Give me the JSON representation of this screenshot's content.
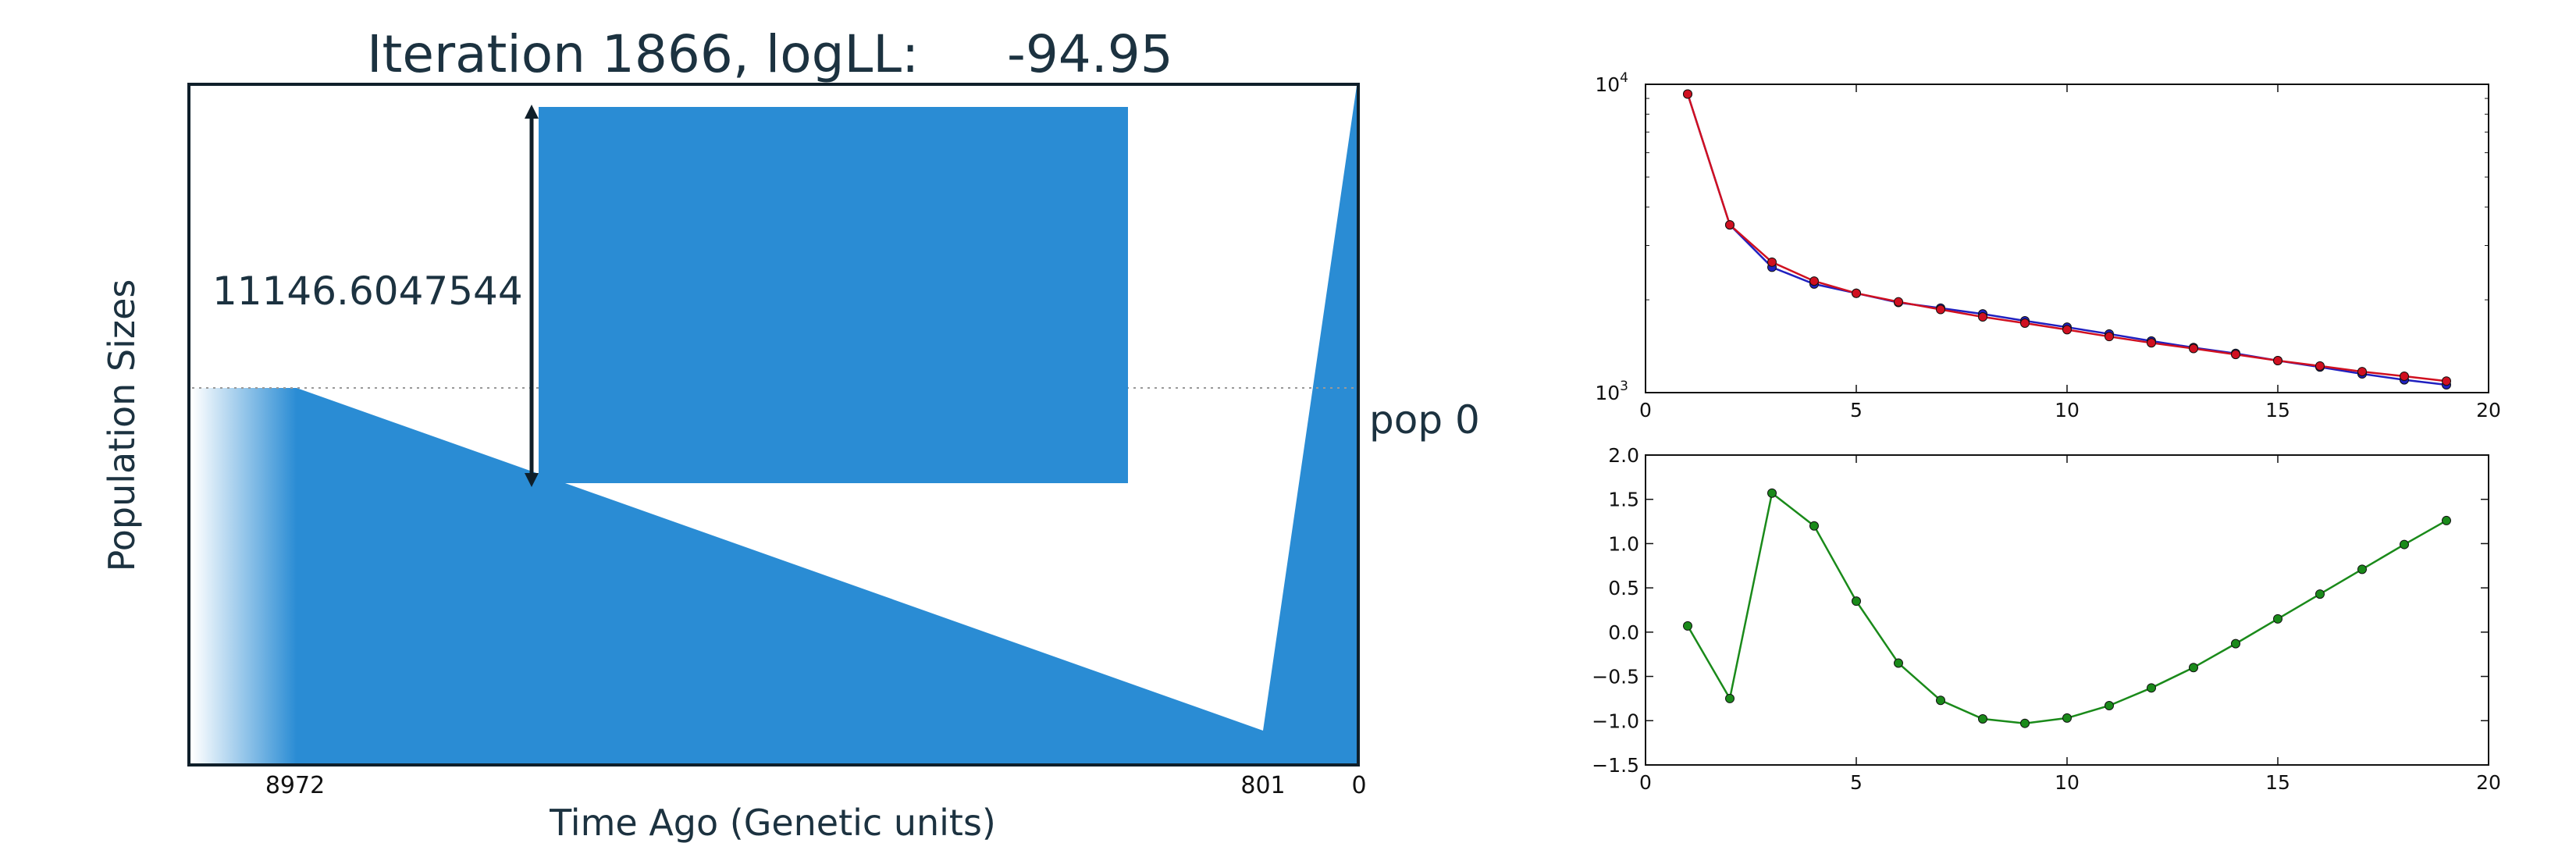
{
  "main_plot": {
    "title": "Iteration 1866, logLL:",
    "loglik": "-94.95",
    "ylabel": "Population Sizes",
    "xlabel": "Time Ago (Genetic units)",
    "bracket_label": "11146.6047544",
    "pop_label": "pop 0",
    "fill_color": "#2a8cd4",
    "xticks": [
      {
        "label": "8972",
        "value": 8972
      },
      {
        "label": "801",
        "value": 801
      },
      {
        "label": "0",
        "value": 0
      }
    ]
  },
  "chart_data": [
    {
      "type": "line",
      "title": "",
      "xlabel": "",
      "ylabel": "",
      "xlim": [
        0,
        20
      ],
      "ylim": [
        1000,
        10000
      ],
      "yscale": "log",
      "xticks": [
        0,
        5,
        10,
        15,
        20
      ],
      "yticks": [
        {
          "value": 1000,
          "base": "10",
          "exp": "3"
        },
        {
          "value": 10000,
          "base": "10",
          "exp": "4"
        }
      ],
      "x": [
        1,
        2,
        3,
        4,
        5,
        6,
        7,
        8,
        9,
        10,
        11,
        12,
        13,
        14,
        15,
        16,
        17,
        18,
        19
      ],
      "series": [
        {
          "color": "#2020c0",
          "values": [
            9300,
            3500,
            2550,
            2250,
            2100,
            1960,
            1880,
            1800,
            1710,
            1630,
            1550,
            1470,
            1400,
            1340,
            1270,
            1210,
            1150,
            1100,
            1060
          ]
        },
        {
          "color": "#d01020",
          "values": [
            9300,
            3500,
            2650,
            2300,
            2100,
            1970,
            1860,
            1760,
            1680,
            1600,
            1520,
            1450,
            1390,
            1330,
            1270,
            1220,
            1170,
            1130,
            1090
          ]
        }
      ]
    },
    {
      "type": "line",
      "title": "",
      "xlabel": "",
      "ylabel": "",
      "xlim": [
        0,
        20
      ],
      "ylim": [
        -1.5,
        2.0
      ],
      "xticks": [
        0,
        5,
        10,
        15,
        20
      ],
      "yticks": [
        {
          "value": 2.0,
          "label": "2.0"
        },
        {
          "value": 1.5,
          "label": "1.5"
        },
        {
          "value": 1.0,
          "label": "1.0"
        },
        {
          "value": 0.5,
          "label": "0.5"
        },
        {
          "value": 0.0,
          "label": "0.0"
        },
        {
          "value": -0.5,
          "label": "−0.5"
        },
        {
          "value": -1.0,
          "label": "−1.0"
        },
        {
          "value": -1.5,
          "label": "−1.5"
        }
      ],
      "x": [
        1,
        2,
        3,
        4,
        5,
        6,
        7,
        8,
        9,
        10,
        11,
        12,
        13,
        14,
        15,
        16,
        17,
        18,
        19
      ],
      "series": [
        {
          "color": "#1a8a1a",
          "values": [
            0.07,
            -0.75,
            1.57,
            1.2,
            0.35,
            -0.35,
            -0.77,
            -0.98,
            -1.03,
            -0.97,
            -0.83,
            -0.63,
            -0.4,
            -0.13,
            0.15,
            0.43,
            0.71,
            0.99,
            1.26
          ]
        }
      ]
    }
  ]
}
